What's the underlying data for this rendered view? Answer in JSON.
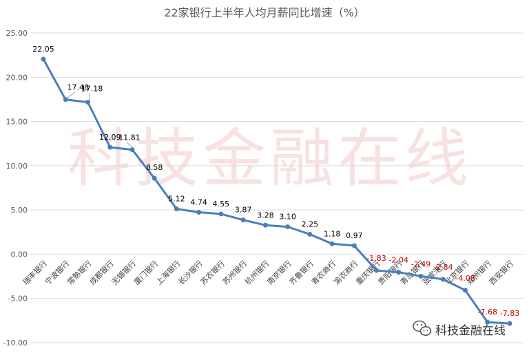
{
  "chart_data": {
    "type": "line",
    "title": "22家银行上半年人均月薪同比增速（%）",
    "xlabel": "",
    "ylabel": "",
    "categories": [
      "瑞丰银行",
      "宁波银行",
      "常熟银行",
      "成都银行",
      "无锡银行",
      "厦门银行",
      "上海银行",
      "长沙银行",
      "苏农银行",
      "苏州银行",
      "杭州银行",
      "南京银行",
      "齐鲁银行",
      "青农商行",
      "渝农商行",
      "重庆银行",
      "贵阳银行",
      "青岛银行",
      "张家港行",
      "北京银行",
      "郑州银行",
      "西安银行"
    ],
    "series": [
      {
        "values": [
          22.05,
          17.48,
          17.18,
          12.09,
          11.81,
          8.58,
          5.12,
          4.74,
          4.55,
          3.87,
          3.28,
          3.1,
          2.25,
          1.18,
          0.97,
          -1.83,
          -2.04,
          -2.49,
          -2.84,
          -4.08,
          -7.68,
          -7.83
        ]
      }
    ],
    "data_labels": [
      "22.05",
      "17.48",
      "17.18",
      "12.09",
      "11.81",
      "8.58",
      "5.12",
      "4.74",
      "4.55",
      "3.87",
      "3.28",
      "3.10",
      "2.25",
      "1.18",
      "0.97",
      "-1.83",
      "-2.04",
      "-2.49",
      "-2.84",
      "-4.08",
      "-7.68",
      "-7.83"
    ],
    "ylim": [
      -10,
      25
    ],
    "yticks": [
      -10,
      -5,
      0,
      5,
      10,
      15,
      20,
      25
    ],
    "ytick_labels": [
      "-10.00",
      "-5.00",
      "0.00",
      "5.00",
      "10.00",
      "15.00",
      "20.00",
      "25.00"
    ],
    "grid": true,
    "legend": "none",
    "colors": {
      "line": "#4a7ebb",
      "label_positive": "#000000",
      "label_negative": "#c00000",
      "grid": "#d9d9d9"
    }
  },
  "watermark": "科技金融在线",
  "brand": {
    "text": "科技金融在线",
    "icon": "wechat-icon"
  }
}
